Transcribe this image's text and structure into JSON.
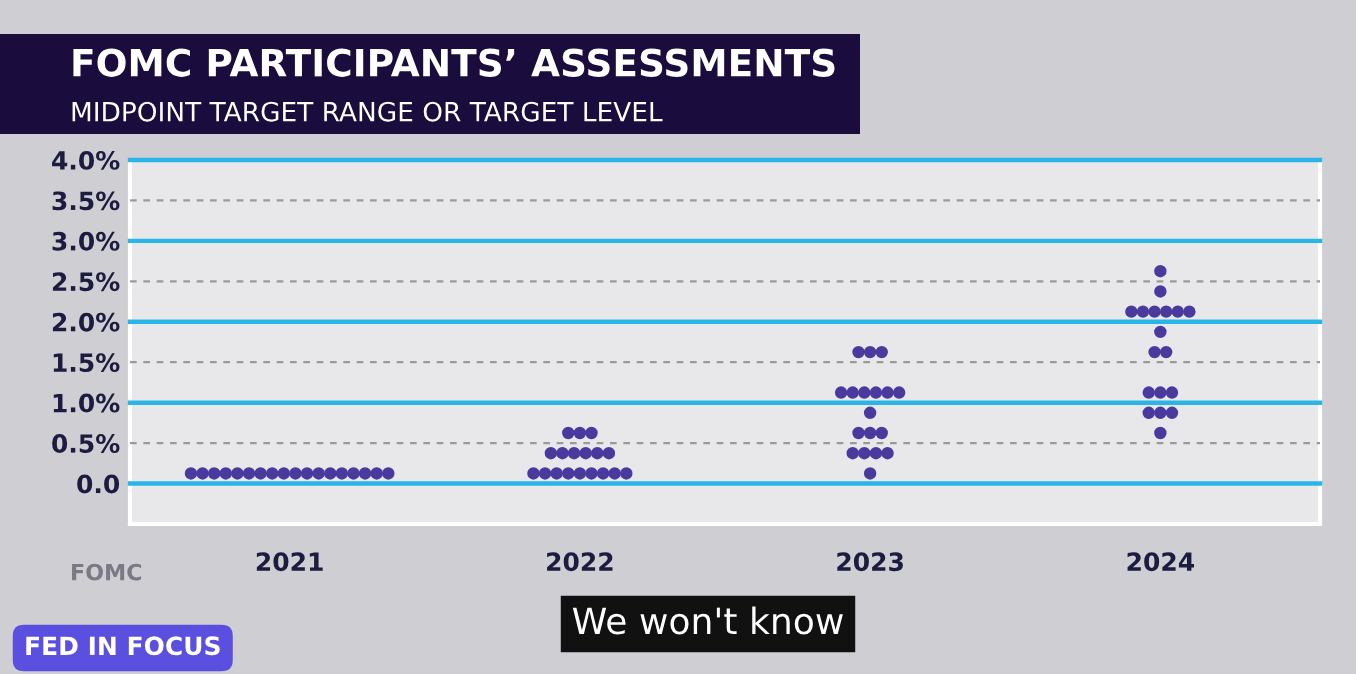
{
  "chart_data": {
    "type": "scatter",
    "title": "FOMC PARTICIPANTS’ ASSESSMENTS",
    "subtitle": "MIDPOINT TARGET RANGE OR TARGET LEVEL",
    "xlim": [
      2020.45,
      2024.55
    ],
    "xticks": [
      2021,
      2022,
      2023,
      2024
    ],
    "series": [
      {
        "color": "#4a3a9e",
        "x": [
          2020.66,
          2020.7,
          2020.74,
          2020.78,
          2020.82,
          2020.86,
          2020.9,
          2020.94,
          2020.98,
          2021.02,
          2021.06,
          2021.1,
          2021.14,
          2021.18,
          2021.22,
          2021.26,
          2021.3,
          2021.34,
          2021.84,
          2021.88,
          2021.92,
          2021.96,
          2022.0,
          2022.04,
          2022.08,
          2022.12,
          2022.16,
          2021.9,
          2021.94,
          2021.98,
          2022.02,
          2022.06,
          2022.1,
          2021.96,
          2022.0,
          2022.04,
          2022.96,
          2023.0,
          2023.04,
          2022.9,
          2022.94,
          2022.98,
          2023.02,
          2023.06,
          2023.1,
          2023.0,
          2022.96,
          2023.0,
          2023.04,
          2022.94,
          2022.98,
          2023.02,
          2023.06,
          2023.0,
          2024.0,
          2024.0,
          2023.9,
          2023.94,
          2023.98,
          2024.02,
          2024.06,
          2024.1,
          2024.0,
          2023.98,
          2024.02,
          2023.96,
          2024.0,
          2024.04,
          2023.96,
          2024.0,
          2024.04,
          2024.0
        ],
        "values": [
          0.125,
          0.125,
          0.125,
          0.125,
          0.125,
          0.125,
          0.125,
          0.125,
          0.125,
          0.125,
          0.125,
          0.125,
          0.125,
          0.125,
          0.125,
          0.125,
          0.125,
          0.125,
          0.125,
          0.125,
          0.125,
          0.125,
          0.125,
          0.125,
          0.125,
          0.125,
          0.125,
          0.375,
          0.375,
          0.375,
          0.375,
          0.375,
          0.375,
          0.625,
          0.625,
          0.625,
          1.625,
          1.625,
          1.625,
          1.125,
          1.125,
          1.125,
          1.125,
          1.125,
          1.125,
          0.875,
          0.625,
          0.625,
          0.625,
          0.375,
          0.375,
          0.375,
          0.375,
          0.125,
          2.625,
          2.375,
          2.125,
          2.125,
          2.125,
          2.125,
          2.125,
          2.125,
          1.875,
          1.625,
          1.625,
          1.125,
          1.125,
          1.125,
          0.875,
          0.875,
          0.875,
          0.625
        ]
      }
    ],
    "ylim": [
      -0.5,
      4.0
    ],
    "yticks": [
      {
        "value": 0,
        "label": "0.0"
      },
      {
        "value": 0.5,
        "label": "0.5%"
      },
      {
        "value": 1,
        "label": "1.0%"
      },
      {
        "value": 1.5,
        "label": "1.5%"
      },
      {
        "value": 2,
        "label": "2.0%"
      },
      {
        "value": 2.5,
        "label": "2.5%"
      },
      {
        "value": 3,
        "label": "3.0%"
      },
      {
        "value": 3.5,
        "label": "3.5%"
      },
      {
        "value": 4,
        "label": "4.0%"
      }
    ],
    "grid": "y",
    "marker": "circle",
    "annotations": [
      "FOMC",
      "FED IN FOCUS",
      "We won't know"
    ]
  }
}
